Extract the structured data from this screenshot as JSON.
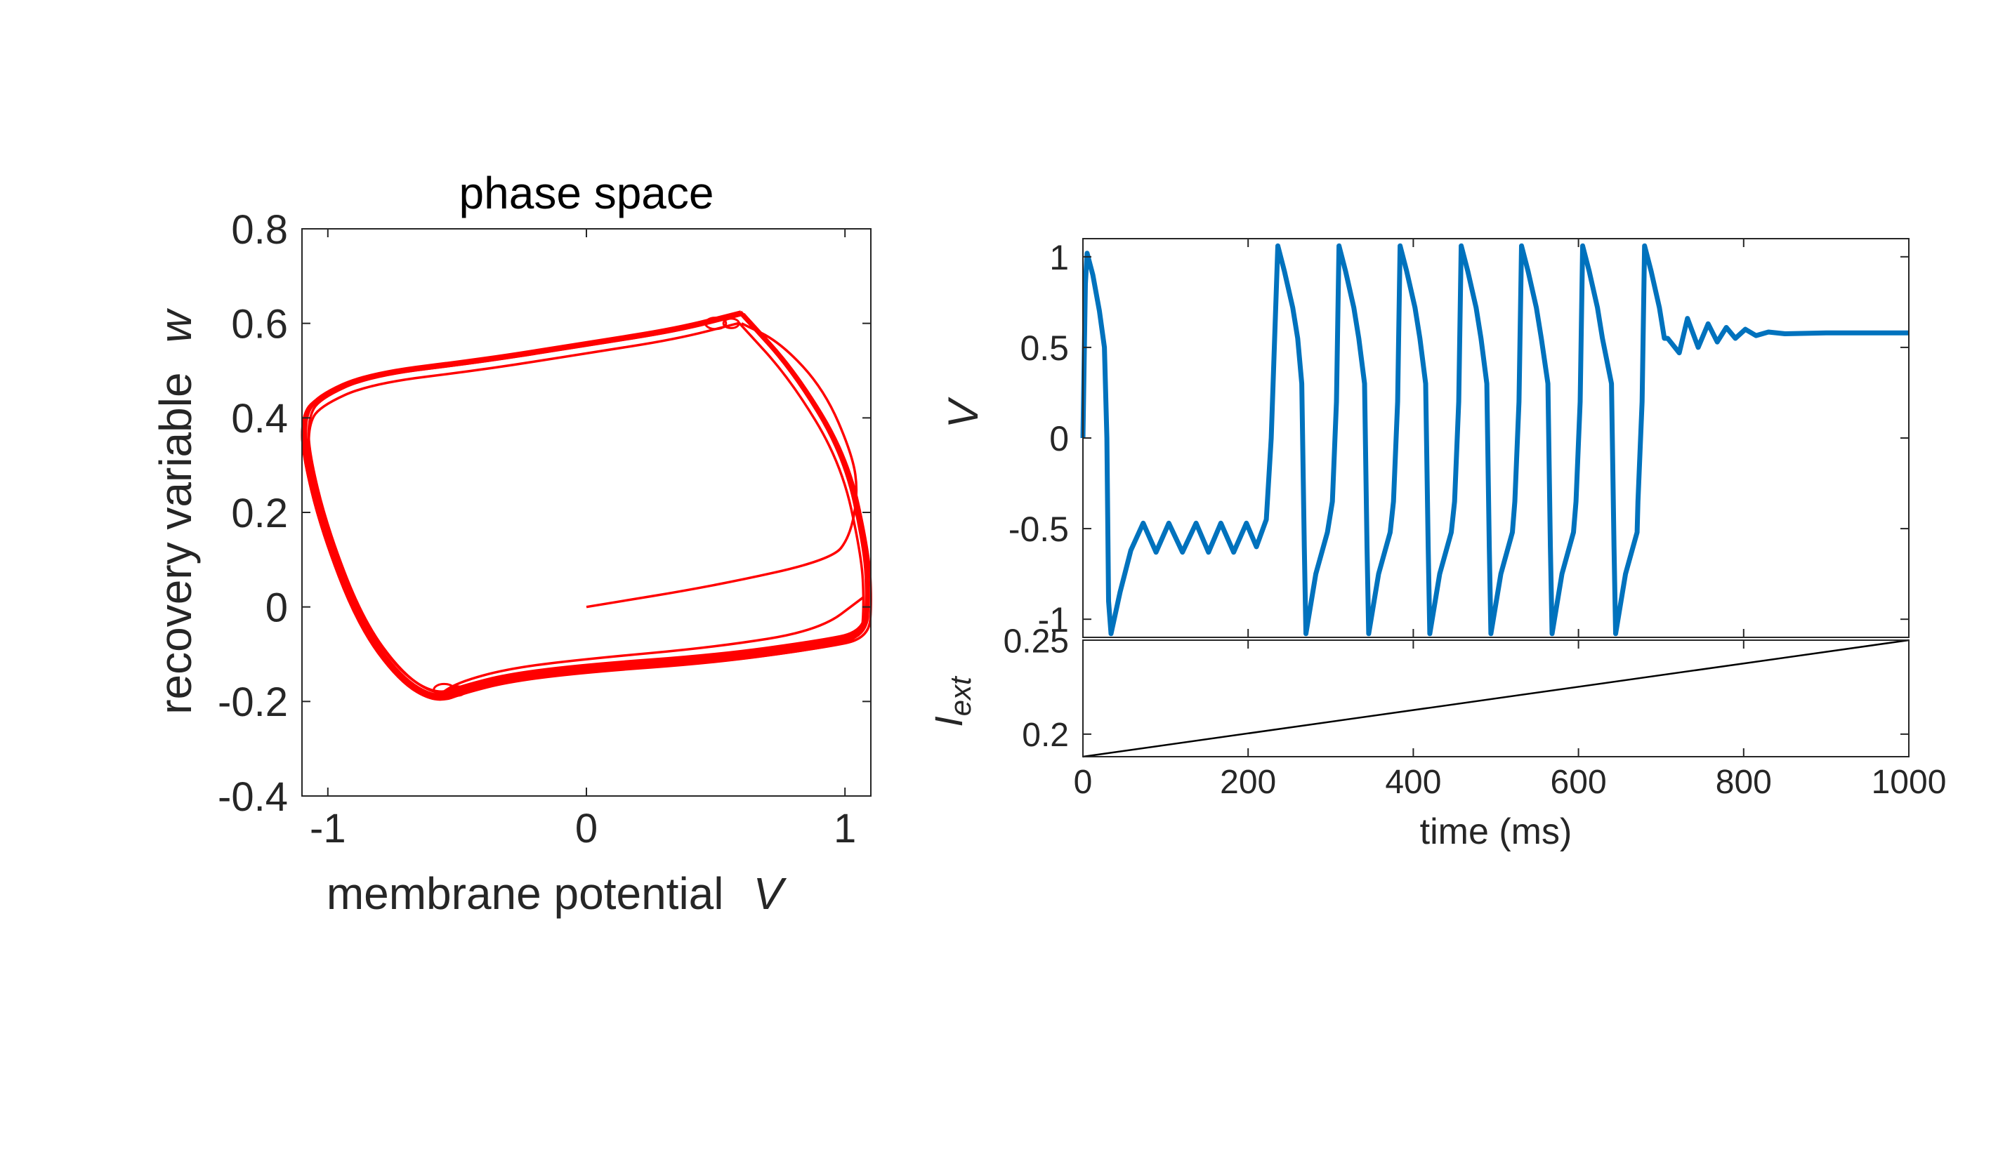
{
  "chart_data": [
    {
      "type": "line",
      "title": "phase space",
      "xlabel": "membrane potential",
      "xlabel_symbol": "V",
      "ylabel": "recovery variable",
      "ylabel_symbol": "w",
      "xlim": [
        -1.1,
        1.1
      ],
      "ylim": [
        -0.4,
        0.8
      ],
      "xticks": [
        -1,
        0,
        1
      ],
      "xtick_labels": [
        "-1",
        "0",
        "1"
      ],
      "yticks": [
        -0.4,
        -0.2,
        0,
        0.2,
        0.4,
        0.6,
        0.8
      ],
      "ytick_labels": [
        "-0.4",
        "-0.2",
        "0",
        "0.2",
        "0.4",
        "0.6",
        "0.8"
      ],
      "grid": false,
      "series": [
        {
          "color": "#ff0000",
          "description_points": "trajectory from (0,0) spiraling onto a limit cycle",
          "x": [
            0,
            0.5,
            0.98,
            1.02,
            1.05,
            1.07,
            0.95,
            0.7,
            0.55,
            0.3,
            0,
            -0.3,
            -0.5,
            -0.58,
            -0.7,
            -0.9,
            -1.05,
            -1.09,
            -1.05,
            -0.9,
            -0.5,
            0,
            0.4,
            0.6,
            0.8,
            1.0,
            1.08,
            1.08,
            0.9,
            0.5,
            0,
            -0.5,
            -0.58,
            -0.7,
            -0.9,
            -1.08,
            -1.1
          ],
          "y": [
            0,
            0.04,
            0.1,
            0.14,
            0.2,
            0.3,
            0.45,
            0.55,
            0.6,
            0.57,
            0.55,
            0.52,
            0.5,
            0.48,
            0.47,
            0.46,
            0.44,
            0.4,
            0.2,
            -0.05,
            -0.18,
            -0.12,
            -0.08,
            -0.06,
            -0.04,
            -0.02,
            0.02,
            0.1,
            0.4,
            0.61,
            0.56,
            0.5,
            -0.19,
            -0.16,
            0.0,
            0.3,
            0.42
          ]
        }
      ]
    },
    {
      "type": "line",
      "title": "",
      "xlabel": "",
      "ylabel": "",
      "ylabel_symbol": "V",
      "xlim": [
        0,
        1000
      ],
      "ylim": [
        -1.1,
        1.1
      ],
      "xticks": [
        0,
        200,
        400,
        600,
        800,
        1000
      ],
      "yticks": [
        -1,
        -0.5,
        0,
        0.5,
        1
      ],
      "ytick_labels": [
        "-1",
        "-0.5",
        "0",
        "0.5",
        "1"
      ],
      "grid": false,
      "series": [
        {
          "color": "#0072bd",
          "spike_times_ms": [
            5,
            236,
            310,
            384,
            458,
            531,
            605,
            680
          ],
          "trough_times_ms": [
            34,
            270,
            346,
            420,
            494,
            568,
            645
          ],
          "subthreshold_oscillation_peaks_ms": [
            73,
            104,
            137,
            167,
            198
          ],
          "final_value": 0.58
        }
      ]
    },
    {
      "type": "line",
      "title": "",
      "xlabel": "time (ms)",
      "ylabel": "I",
      "ylabel_subscript": "ext",
      "xlim": [
        0,
        1000
      ],
      "ylim": [
        0.188,
        0.25
      ],
      "xticks": [
        0,
        200,
        400,
        600,
        800,
        1000
      ],
      "xtick_labels": [
        "0",
        "200",
        "400",
        "600",
        "800",
        "1000"
      ],
      "yticks": [
        0.2,
        0.25
      ],
      "ytick_labels": [
        "0.2",
        "0.25"
      ],
      "grid": false,
      "series": [
        {
          "color": "#000000",
          "x": [
            0,
            1000
          ],
          "y": [
            0.188,
            0.25
          ]
        }
      ]
    }
  ]
}
